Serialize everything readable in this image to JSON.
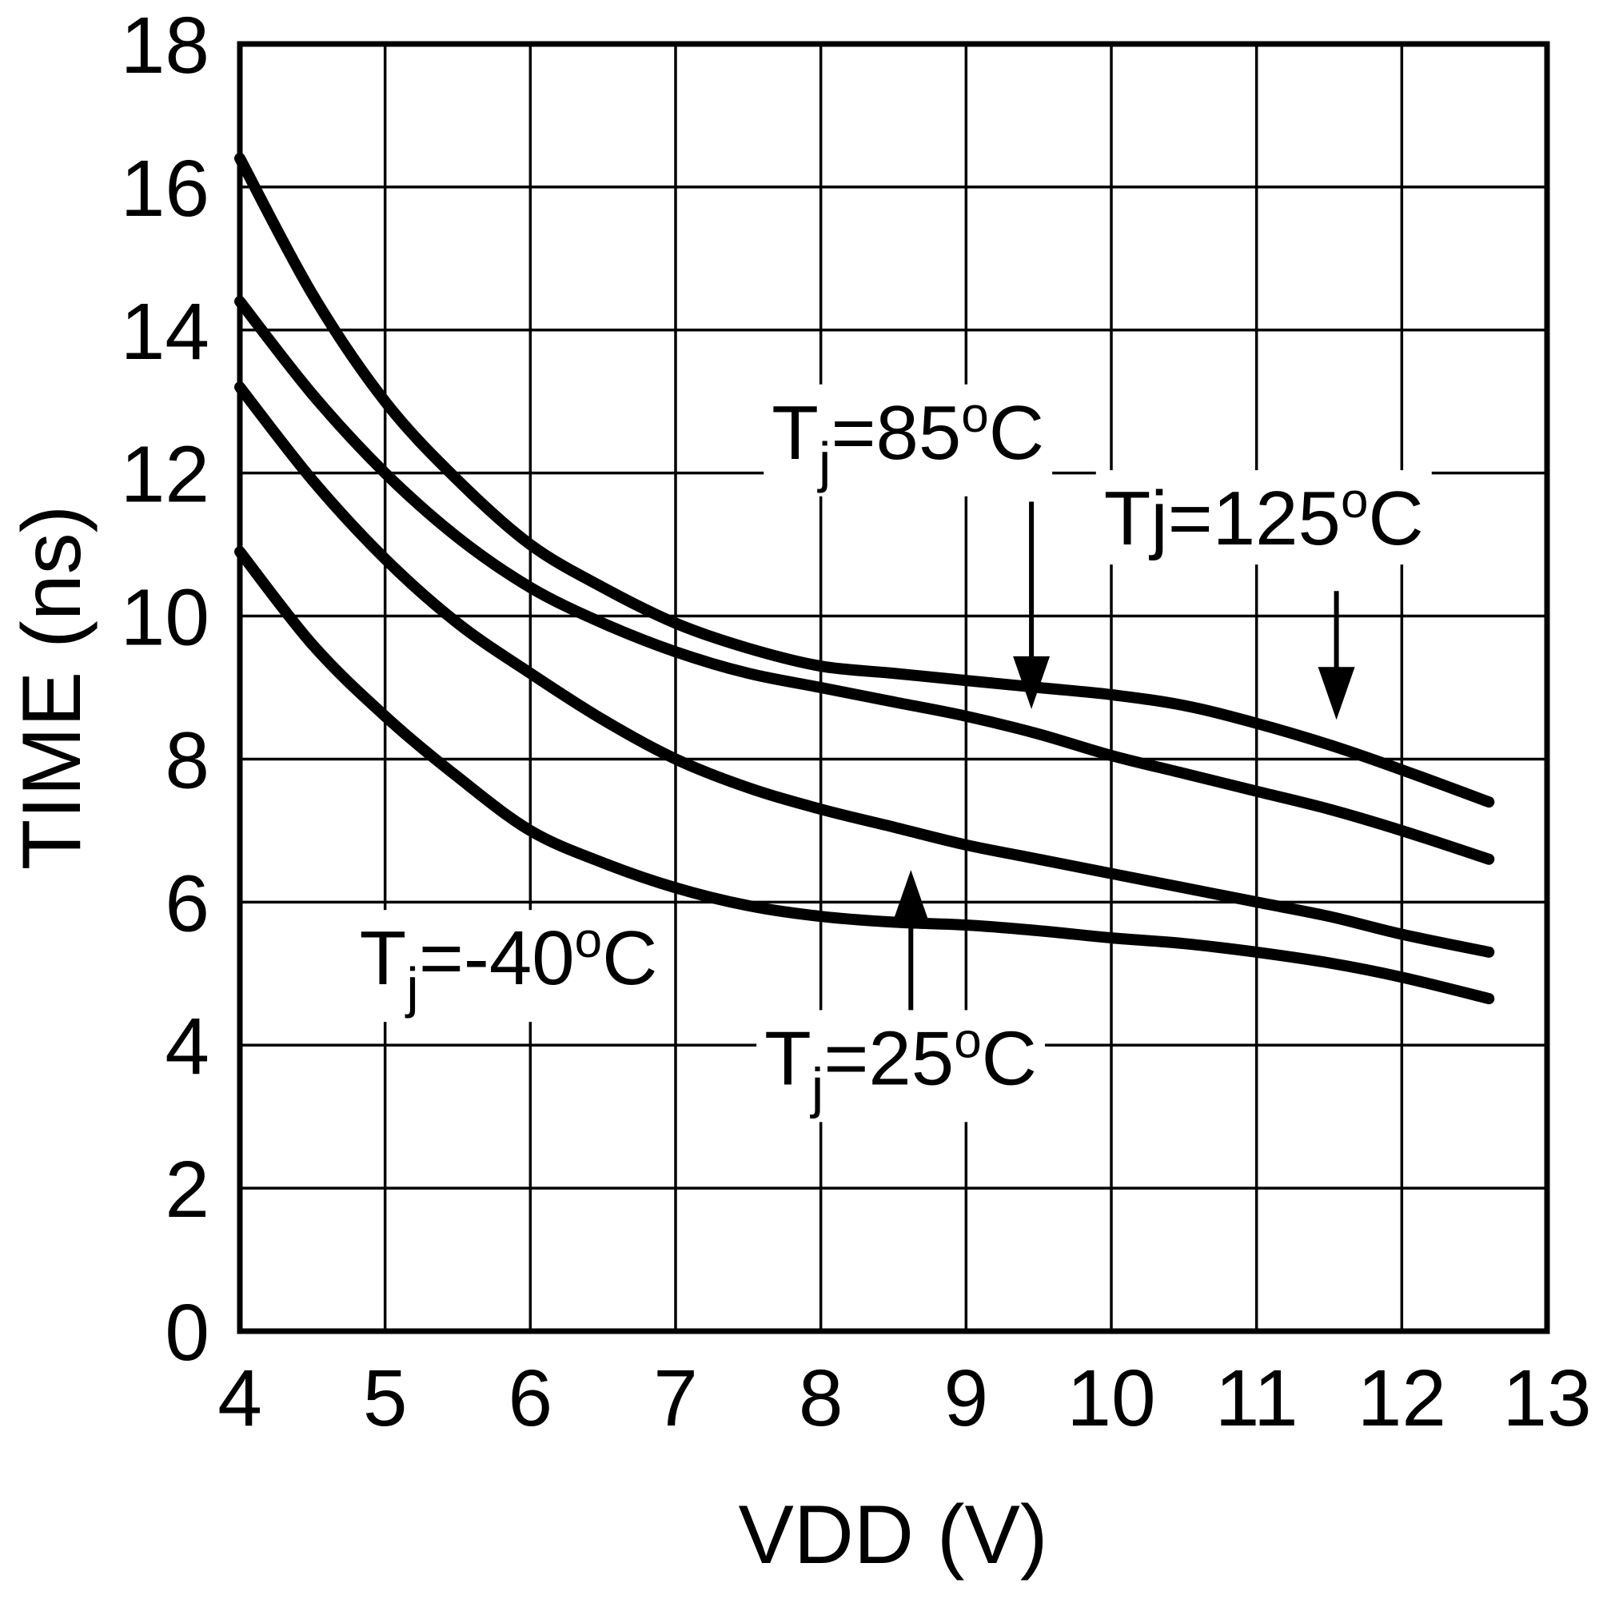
{
  "page": {
    "background": "#ffffff"
  },
  "chart_data": {
    "type": "line",
    "title": "",
    "xlabel": "VDD (V)",
    "ylabel": "TIME (ns)",
    "xlim": [
      4,
      13
    ],
    "ylim": [
      0,
      18
    ],
    "x_ticks": [
      4,
      5,
      6,
      7,
      8,
      9,
      10,
      11,
      12,
      13
    ],
    "y_ticks": [
      0,
      2,
      4,
      6,
      8,
      10,
      12,
      14,
      16,
      18
    ],
    "grid": true,
    "line_color": "#000000",
    "x": [
      4,
      4.5,
      5,
      5.5,
      6,
      6.5,
      7,
      7.5,
      8,
      8.5,
      9,
      9.5,
      10,
      10.5,
      11,
      11.5,
      12,
      12.6
    ],
    "series": [
      {
        "key": "tj-125c",
        "label": "Tj=125°C",
        "values": [
          16.4,
          14.5,
          13.0,
          11.9,
          11.0,
          10.4,
          9.9,
          9.55,
          9.3,
          9.2,
          9.1,
          9.0,
          8.9,
          8.75,
          8.5,
          8.2,
          7.85,
          7.4
        ]
      },
      {
        "key": "tj-85c",
        "label": "Tj=85°C",
        "values": [
          14.4,
          13.1,
          12.0,
          11.1,
          10.4,
          9.9,
          9.5,
          9.2,
          9.0,
          8.8,
          8.6,
          8.35,
          8.05,
          7.8,
          7.55,
          7.3,
          7.0,
          6.6
        ]
      },
      {
        "key": "tj-25c",
        "label": "Tj=25°C",
        "values": [
          13.2,
          11.9,
          10.8,
          9.9,
          9.2,
          8.55,
          8.0,
          7.6,
          7.3,
          7.05,
          6.8,
          6.6,
          6.4,
          6.2,
          6.0,
          5.8,
          5.55,
          5.3
        ]
      },
      {
        "key": "tj-minus40c",
        "label": "Tj=-40°C",
        "values": [
          10.9,
          9.6,
          8.6,
          7.75,
          7.0,
          6.55,
          6.2,
          5.95,
          5.8,
          5.72,
          5.68,
          5.6,
          5.5,
          5.42,
          5.3,
          5.15,
          4.95,
          4.65
        ]
      }
    ],
    "annotations": [
      {
        "name": "label-tj-85c",
        "label": "Tj=85°C",
        "x": 8.6,
        "y": 12.2,
        "segments": [
          {
            "t": "T"
          },
          {
            "t": "j",
            "pos": "sub"
          },
          {
            "t": "=85"
          },
          {
            "t": "o",
            "pos": "sup"
          },
          {
            "t": "C"
          }
        ],
        "arrow": {
          "x": 9.45,
          "from_y": 11.6,
          "to_y": 8.7
        }
      },
      {
        "name": "label-tj-125c",
        "label": "Tj=125°C",
        "x": 11.05,
        "y": 11.0,
        "segments": [
          {
            "t": "Tj=125"
          },
          {
            "t": "o",
            "pos": "sup"
          },
          {
            "t": "C"
          }
        ],
        "arrow": {
          "x": 11.55,
          "from_y": 10.35,
          "to_y": 8.55
        }
      },
      {
        "name": "label-tj-minus40c",
        "label": "Tj=-40°C",
        "x": 5.85,
        "y": 4.85,
        "segments": [
          {
            "t": "T"
          },
          {
            "t": "j",
            "pos": "sub"
          },
          {
            "t": "=-40"
          },
          {
            "t": "o",
            "pos": "sup"
          },
          {
            "t": "C"
          }
        ],
        "arrow": null
      },
      {
        "name": "label-tj-25c",
        "label": "Tj=25°C",
        "x": 8.55,
        "y": 3.45,
        "segments": [
          {
            "t": "T"
          },
          {
            "t": "j",
            "pos": "sub"
          },
          {
            "t": "=25"
          },
          {
            "t": "o",
            "pos": "sup"
          },
          {
            "t": "C"
          }
        ],
        "arrow": {
          "x": 8.62,
          "from_y": 4.4,
          "to_y": 6.45
        }
      }
    ]
  }
}
